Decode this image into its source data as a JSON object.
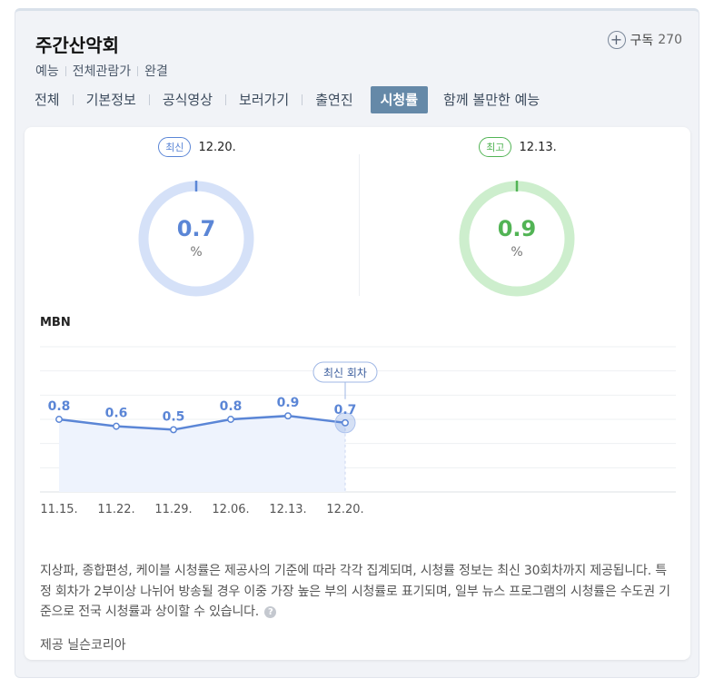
{
  "program": {
    "title": "주간산악회",
    "meta": [
      "예능",
      "전체관람가",
      "완결"
    ],
    "subscribe_label": "구독",
    "subscribe_count": "270"
  },
  "tabs": [
    {
      "label": "전체",
      "active": false
    },
    {
      "label": "기본정보",
      "active": false
    },
    {
      "label": "공식영상",
      "active": false
    },
    {
      "label": "보러가기",
      "active": false
    },
    {
      "label": "출연진",
      "active": false
    },
    {
      "label": "시청률",
      "active": true
    },
    {
      "label": "함께 볼만한 예능",
      "active": false
    }
  ],
  "ratings": {
    "latest": {
      "badge": "최신",
      "date": "12.20.",
      "value": "0.7",
      "unit": "%",
      "color": "#5b86d6",
      "track": "#d5e1f8"
    },
    "highest": {
      "badge": "최고",
      "date": "12.13.",
      "value": "0.9",
      "unit": "%",
      "color": "#52b455",
      "track": "#cdeecd"
    }
  },
  "chart_data": {
    "type": "line",
    "channel": "MBN",
    "categories": [
      "11.15.",
      "11.22.",
      "11.29.",
      "12.06.",
      "12.13.",
      "12.20."
    ],
    "values": [
      0.8,
      0.6,
      0.5,
      0.8,
      0.9,
      0.7
    ],
    "highlight_label": "최신 회차",
    "highlight_index": 5,
    "ylim": [
      -1.3,
      2.9
    ],
    "grid": true,
    "color": "#5b86d6"
  },
  "notice": {
    "text": "지상파, 종합편성, 케이블 시청률은 제공사의 기준에 따라 각각 집계되며, 시청률 정보는 최신 30회차까지 제공됩니다. 특정 회차가 2부이상 나뉘어 방송될 경우 이중 가장 높은 부의 시청률로 표기되며, 일부 뉴스 프로그램의 시청률은 수도권 기준으로 전국 시청률과 상이할 수 있습니다.",
    "help_icon": "?",
    "provider": "제공 닐슨코리아"
  }
}
